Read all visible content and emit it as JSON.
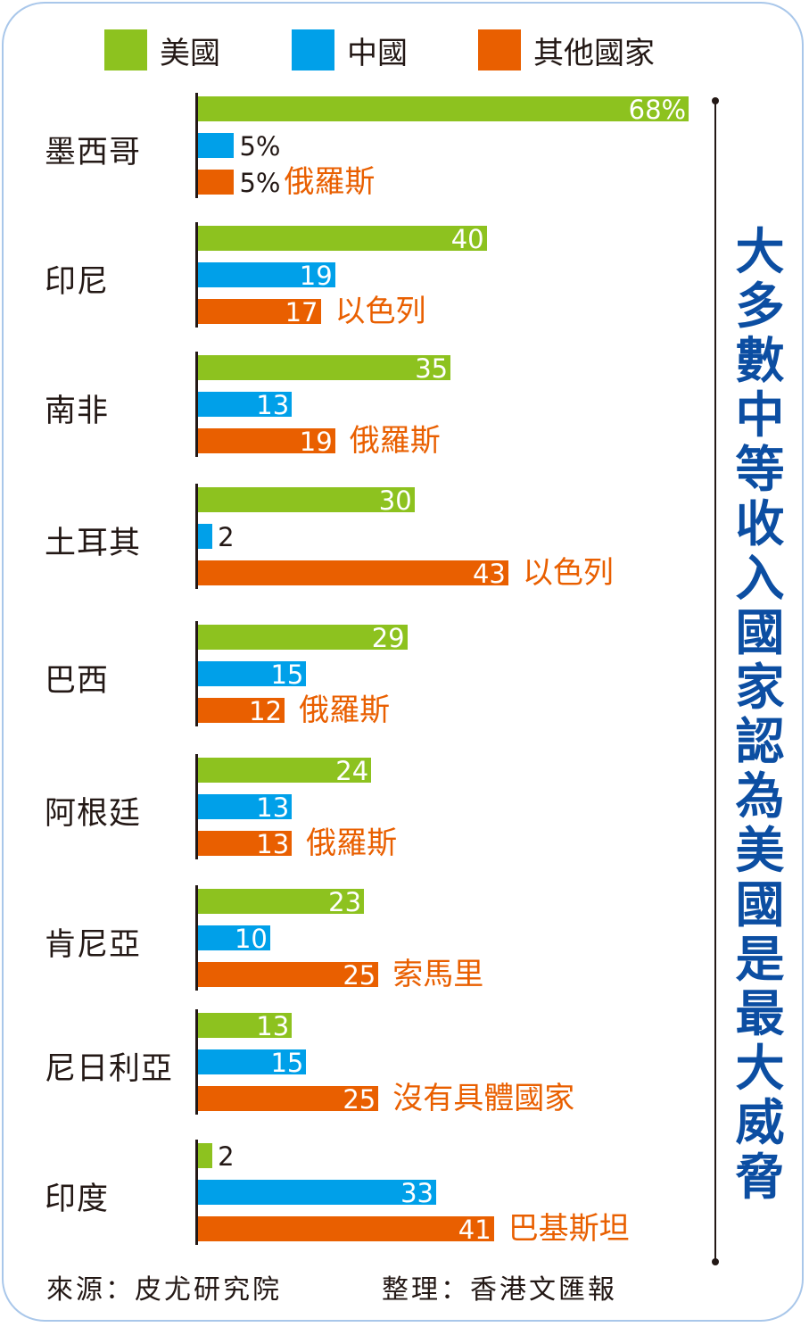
{
  "chart_data": {
    "type": "bar",
    "orientation": "horizontal",
    "title": "大多數中等收入國家認為美國是最大威脅",
    "unit": "%",
    "legend": [
      "美國",
      "中國",
      "其他國家"
    ],
    "legend_placement": "top",
    "colors": {
      "美國": "#8dc21f",
      "中國": "#00a0e9",
      "其他國家": "#e95f00"
    },
    "categories": [
      "墨西哥",
      "印尼",
      "南非",
      "土耳其",
      "巴西",
      "阿根廷",
      "肯尼亞",
      "尼日利亞",
      "印度"
    ],
    "series": [
      {
        "name": "美國",
        "values": [
          68,
          40,
          35,
          30,
          29,
          24,
          23,
          13,
          2
        ]
      },
      {
        "name": "中國",
        "values": [
          5,
          19,
          13,
          2,
          15,
          13,
          10,
          15,
          33
        ]
      },
      {
        "name": "其他國家",
        "values": [
          5,
          17,
          19,
          43,
          12,
          13,
          25,
          25,
          41
        ]
      }
    ],
    "value_labels": [
      [
        "68%",
        "5%",
        "5%"
      ],
      [
        "40",
        "19",
        "17"
      ],
      [
        "35",
        "13",
        "19"
      ],
      [
        "30",
        "2",
        "43"
      ],
      [
        "29",
        "15",
        "12"
      ],
      [
        "24",
        "13",
        "13"
      ],
      [
        "23",
        "10",
        "25"
      ],
      [
        "13",
        "15",
        "25"
      ],
      [
        "2",
        "33",
        "41"
      ]
    ],
    "other_country_names": [
      "俄羅斯",
      "以色列",
      "俄羅斯",
      "以色列",
      "俄羅斯",
      "俄羅斯",
      "索馬里",
      "沒有具體國家",
      "巴基斯坦"
    ]
  },
  "footer": {
    "source": "來源：皮尤研究院",
    "compiled": "整理：香港文匯報"
  }
}
